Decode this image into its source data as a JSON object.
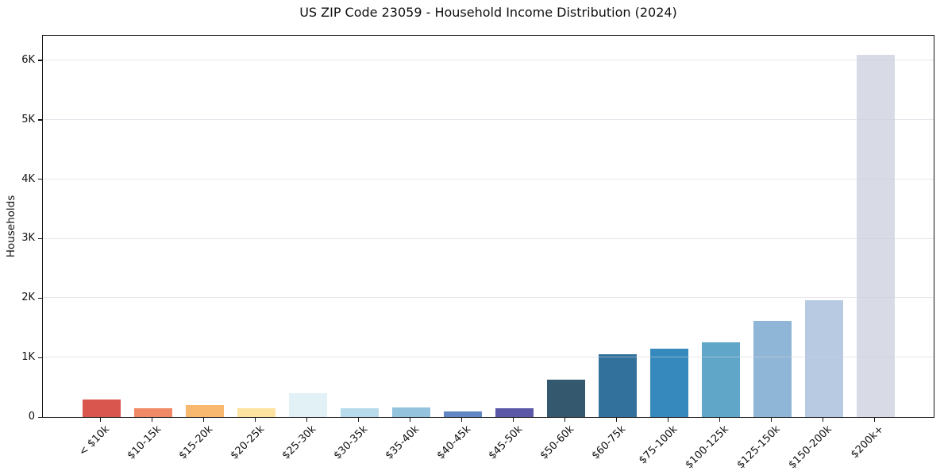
{
  "figure": {
    "title": "US ZIP Code 23059 - Household Income Distribution (2024)"
  },
  "chart_data": {
    "type": "bar",
    "title": "US ZIP Code 23059 - Household Income Distribution (2024)",
    "xlabel": "",
    "ylabel": "Households",
    "categories": [
      "< $10k",
      "$10-15k",
      "$15-20k",
      "$20-25k",
      "$25-30k",
      "$30-35k",
      "$35-40k",
      "$40-45k",
      "$45-50k",
      "$50-60k",
      "$60-75k",
      "$75-100k",
      "$100-125k",
      "$125-150k",
      "$150-200k",
      "$200k+"
    ],
    "values": [
      290,
      145,
      195,
      150,
      395,
      150,
      155,
      100,
      150,
      630,
      1060,
      1150,
      1250,
      1615,
      1965,
      6100
    ],
    "bar_colors": [
      "#d9564e",
      "#f08a66",
      "#f9b870",
      "#fde3a0",
      "#e2f1f6",
      "#b7dbeb",
      "#93c3dd",
      "#6288c4",
      "#5b58a8",
      "#34596e",
      "#31719c",
      "#3689bd",
      "#5fa6c9",
      "#8fb6d7",
      "#b8cae1",
      "#d8dae6"
    ],
    "ylim": [
      0,
      6400
    ],
    "ytick_values": [
      0,
      1000,
      2000,
      3000,
      4000,
      5000,
      6000
    ],
    "ytick_labels": [
      "0",
      "1K",
      "2K",
      "3K",
      "4K",
      "5K",
      "6K"
    ],
    "x_tick_rotation_deg": 45,
    "grid": "horizontal",
    "legend_position": "none"
  },
  "style": {
    "background": "#ffffff",
    "spine_color": "#141414",
    "grid_color": "#e9e9ee",
    "text_color": "#1a1a1a"
  }
}
